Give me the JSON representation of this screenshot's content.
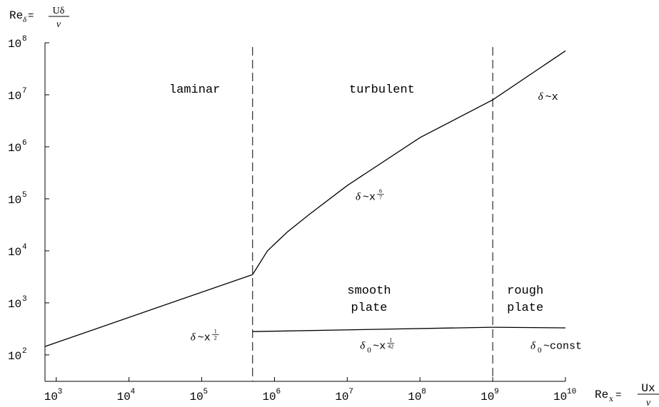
{
  "chart_data": {
    "type": "line",
    "xscale": "log",
    "yscale": "log",
    "xlim": [
      700,
      10000000000
    ],
    "ylim": [
      31,
      100000000
    ],
    "grid": false,
    "legend": "none",
    "xlabel": {
      "base": "Re",
      "sub": "x",
      "num": "Ux",
      "den": "ν"
    },
    "ylabel": {
      "base": "Re",
      "sub": "δ",
      "num": "Uδ",
      "den": "ν"
    },
    "xticks": [
      {
        "value": 1000,
        "base": "10",
        "exp": "3"
      },
      {
        "value": 10000,
        "base": "10",
        "exp": "4"
      },
      {
        "value": 100000,
        "base": "10",
        "exp": "5"
      },
      {
        "value": 1000000,
        "base": "10",
        "exp": "6"
      },
      {
        "value": 10000000,
        "base": "10",
        "exp": "7"
      },
      {
        "value": 100000000,
        "base": "10",
        "exp": "8"
      },
      {
        "value": 1000000000,
        "base": "10",
        "exp": "9"
      },
      {
        "value": 10000000000,
        "base": "10",
        "exp": "10"
      }
    ],
    "yticks": [
      {
        "value": 100,
        "base": "10",
        "exp": "2"
      },
      {
        "value": 1000,
        "base": "10",
        "exp": "3"
      },
      {
        "value": 10000,
        "base": "10",
        "exp": "4"
      },
      {
        "value": 100000,
        "base": "10",
        "exp": "5"
      },
      {
        "value": 1000000,
        "base": "10",
        "exp": "6"
      },
      {
        "value": 10000000,
        "base": "10",
        "exp": "7"
      },
      {
        "value": 100000000,
        "base": "10",
        "exp": "8"
      }
    ],
    "vlines": [
      500000,
      1000000000
    ],
    "series": [
      {
        "points": [
          [
            700,
            145
          ],
          [
            500000,
            3500
          ]
        ]
      },
      {
        "points": [
          [
            500000,
            3500
          ],
          [
            800000,
            10000
          ],
          [
            1500000,
            23000
          ],
          [
            3000000,
            50000
          ],
          [
            10000000,
            180000
          ],
          [
            100000000,
            1500000
          ],
          [
            1000000000,
            8000000
          ],
          [
            10000000000,
            70000000
          ]
        ]
      },
      {
        "points": [
          [
            500000,
            280
          ],
          [
            1000000000,
            340
          ]
        ]
      },
      {
        "points": [
          [
            1000000000,
            340
          ],
          [
            10000000000,
            330
          ]
        ]
      }
    ],
    "annotations": [
      {
        "text": "laminar",
        "x": 80000,
        "y": 11000000
      },
      {
        "text": "turbulent",
        "x": 30000000,
        "y": 11000000
      },
      {
        "text": "smooth",
        "x": 20000000,
        "y": 1500
      },
      {
        "text": "plate",
        "x": 20000000,
        "y": 700
      },
      {
        "text": "rough",
        "x": 2800000000,
        "y": 1500
      },
      {
        "text": "plate",
        "x": 2800000000,
        "y": 700
      }
    ],
    "formulas": {
      "f1": {
        "d": "δ",
        "rest": "~x",
        "exp_num": "1",
        "exp_den": "2",
        "x": 70000,
        "y": 190
      },
      "f2": {
        "d": "δ",
        "rest": "~x",
        "exp_num": "6",
        "exp_den": "7",
        "x": 13000000,
        "y": 95000
      },
      "f3": {
        "d": "δ",
        "sub": "0",
        "rest": "~x",
        "exp_num": "1",
        "exp_den": "42",
        "x": 15000000,
        "y": 130
      },
      "f4": {
        "d": "δ",
        "rest": "~x",
        "x": 4200000000,
        "y": 8000000
      },
      "f5": {
        "d": "δ",
        "sub": "0",
        "rest": "~const",
        "x": 3300000000,
        "y": 130
      }
    }
  }
}
